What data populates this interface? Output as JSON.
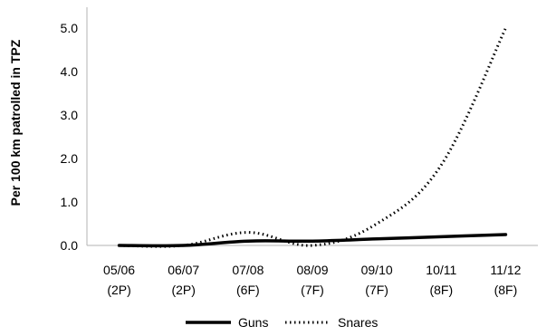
{
  "chart_data": {
    "type": "line",
    "title": "",
    "ylabel": "Per 100 km patrolled in TPZ",
    "xlabel": "",
    "categories": [
      {
        "line1": "05/06",
        "line2": "(2P)"
      },
      {
        "line1": "06/07",
        "line2": "(2P)"
      },
      {
        "line1": "07/08",
        "line2": "(6F)"
      },
      {
        "line1": "08/09",
        "line2": "(7F)"
      },
      {
        "line1": "09/10",
        "line2": "(7F)"
      },
      {
        "line1": "10/11",
        "line2": "(8F)"
      },
      {
        "line1": "11/12",
        "line2": "(8F)"
      }
    ],
    "series": [
      {
        "name": "Guns",
        "style": "solid",
        "color": "#000000",
        "values": [
          0.0,
          0.0,
          0.1,
          0.1,
          0.15,
          0.2,
          0.25
        ]
      },
      {
        "name": "Snares",
        "style": "dotted",
        "color": "#000000",
        "values": [
          0.0,
          0.0,
          0.3,
          0.0,
          0.5,
          1.85,
          5.0
        ]
      }
    ],
    "ylim": [
      0,
      5.0
    ],
    "yticks": [
      "0.0",
      "1.0",
      "2.0",
      "3.0",
      "4.0",
      "5.0"
    ],
    "grid": false,
    "legend_position": "bottom-center"
  }
}
